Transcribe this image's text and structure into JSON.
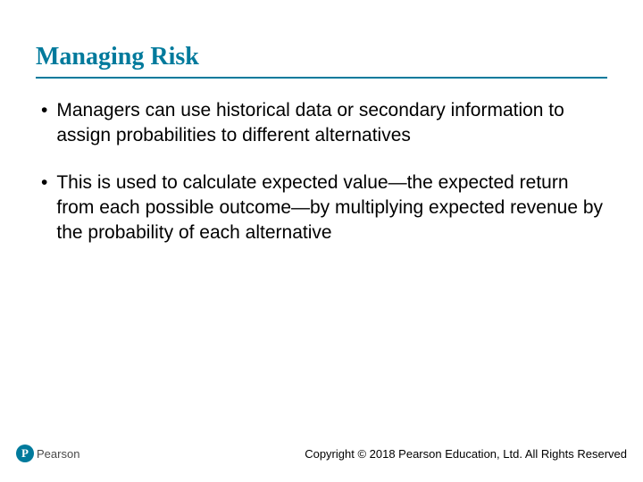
{
  "title": "Managing Risk",
  "title_color": "#007a9c",
  "title_font_family": "Georgia, 'Times New Roman', serif",
  "title_fontsize": 28,
  "title_border_color": "#007a9c",
  "bullets": [
    "Managers can use historical data or secondary information to assign probabilities to different alternatives",
    "This is used to calculate expected value—the expected return from each possible outcome—by multiplying expected revenue by the probability of each alternative"
  ],
  "bullet_fontsize": 21,
  "bullet_color": "#000000",
  "bullet_marker": "•",
  "logo": {
    "mark_letter": "P",
    "mark_bg": "#007a9c",
    "mark_fg": "#ffffff",
    "text": "Pearson",
    "text_color": "#4a4a4a"
  },
  "copyright": "Copyright © 2018 Pearson Education, Ltd. All Rights Reserved",
  "copyright_fontsize": 13,
  "background_color": "#ffffff"
}
